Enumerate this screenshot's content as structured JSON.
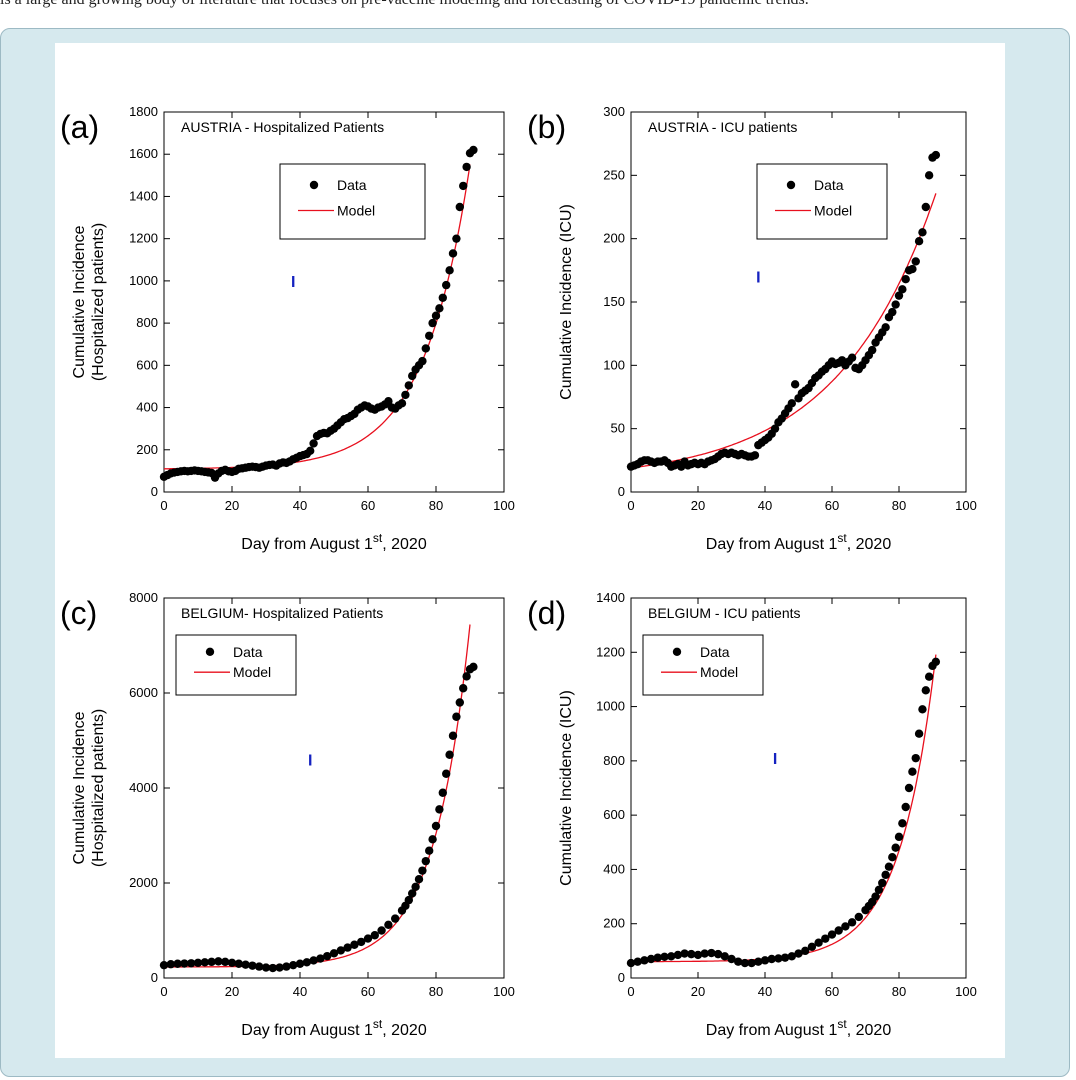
{
  "page": {
    "top_text": "is a large and growing body of literature that focuses on pre-vaccine modeling and forecasting of COVID-19 pandemic trends.",
    "colors": {
      "frame_bg": "#d6e9ee",
      "data_marker": "#000000",
      "model_line": "#e8101e",
      "marker_i": "#1522c0"
    }
  },
  "chart_data": [
    {
      "panel_label": "(a)",
      "type": "scatter",
      "title": "AUSTRIA - Hospitalized Patients",
      "xlabel_pre": "Day from August 1",
      "xlabel_sup": "st",
      "xlabel_post": ", 2020",
      "ylabel": [
        "Cumulative Incidence",
        "(Hospitalized patients)"
      ],
      "xlim": [
        0,
        100
      ],
      "ylim": [
        0,
        1800
      ],
      "xticks": [
        0,
        20,
        40,
        60,
        80,
        100
      ],
      "yticks": [
        0,
        200,
        400,
        600,
        800,
        1000,
        1200,
        1400,
        1600,
        1800
      ],
      "legend": {
        "position": "top-right",
        "entries": [
          "Data",
          "Model"
        ]
      },
      "marker_I": {
        "label": "I",
        "x": 38,
        "y": 1000
      },
      "model": {
        "base": 108,
        "amp": 1.9,
        "rate": 0.0737,
        "x_end": 90
      },
      "series": [
        {
          "name": "Data",
          "x": [
            0,
            1,
            2,
            3,
            4,
            5,
            6,
            7,
            8,
            9,
            10,
            11,
            12,
            13,
            14,
            15,
            16,
            17,
            18,
            19,
            20,
            21,
            22,
            23,
            24,
            25,
            26,
            27,
            28,
            29,
            30,
            31,
            32,
            33,
            34,
            35,
            36,
            37,
            38,
            39,
            40,
            41,
            42,
            43,
            44,
            45,
            46,
            47,
            48,
            49,
            50,
            51,
            52,
            53,
            54,
            55,
            56,
            57,
            58,
            59,
            60,
            61,
            62,
            63,
            64,
            65,
            66,
            67,
            68,
            69,
            70,
            71,
            72,
            73,
            74,
            75,
            76,
            77,
            78,
            79,
            80,
            81,
            82,
            83,
            84,
            85,
            86,
            87,
            88,
            89,
            90,
            91
          ],
          "y": [
            72,
            80,
            88,
            92,
            95,
            98,
            100,
            98,
            100,
            102,
            100,
            98,
            95,
            93,
            90,
            68,
            88,
            100,
            105,
            98,
            95,
            100,
            110,
            112,
            115,
            118,
            120,
            118,
            115,
            120,
            125,
            128,
            130,
            125,
            135,
            140,
            138,
            145,
            155,
            162,
            170,
            175,
            180,
            195,
            230,
            265,
            275,
            280,
            278,
            290,
            300,
            315,
            330,
            345,
            350,
            360,
            370,
            390,
            400,
            410,
            405,
            395,
            390,
            400,
            405,
            415,
            430,
            400,
            395,
            410,
            420,
            460,
            505,
            550,
            580,
            600,
            620,
            680,
            740,
            800,
            835,
            870,
            920,
            980,
            1050,
            1130,
            1200,
            1350,
            1450,
            1540,
            1605,
            1620
          ]
        }
      ]
    },
    {
      "panel_label": "(b)",
      "type": "scatter",
      "title": "AUSTRIA - ICU patients",
      "xlabel_pre": "Day from August 1",
      "xlabel_sup": "st",
      "xlabel_post": ", 2020",
      "ylabel": [
        "Cumulative  Incidence (ICU)"
      ],
      "xlim": [
        0,
        100
      ],
      "ylim": [
        0,
        300
      ],
      "xticks": [
        0,
        20,
        40,
        60,
        80,
        100
      ],
      "yticks": [
        0,
        50,
        100,
        150,
        200,
        250,
        300
      ],
      "legend": {
        "position": "top-right",
        "entries": [
          "Data",
          "Model"
        ]
      },
      "marker_I": {
        "label": "I",
        "x": 38,
        "y": 170
      },
      "model": {
        "base": 9,
        "amp": 10,
        "rate": 0.0343,
        "x_end": 91
      },
      "series": [
        {
          "name": "Data",
          "x": [
            0,
            1,
            2,
            3,
            4,
            5,
            6,
            7,
            8,
            9,
            10,
            11,
            12,
            13,
            14,
            15,
            16,
            17,
            18,
            19,
            20,
            21,
            22,
            23,
            24,
            25,
            26,
            27,
            28,
            29,
            30,
            31,
            32,
            33,
            34,
            35,
            36,
            37,
            38,
            39,
            40,
            41,
            42,
            43,
            44,
            45,
            46,
            47,
            48,
            49,
            50,
            51,
            52,
            53,
            54,
            55,
            56,
            57,
            58,
            59,
            60,
            61,
            62,
            63,
            64,
            65,
            66,
            67,
            68,
            69,
            70,
            71,
            72,
            73,
            74,
            75,
            76,
            77,
            78,
            79,
            80,
            81,
            82,
            83,
            84,
            85,
            86,
            87,
            88,
            89,
            90,
            91
          ],
          "y": [
            20,
            21,
            22,
            24,
            25,
            25,
            24,
            23,
            24,
            24,
            25,
            23,
            20,
            21,
            22,
            20,
            24,
            21,
            22,
            23,
            22,
            23,
            22,
            24,
            25,
            26,
            28,
            30,
            31,
            30,
            31,
            30,
            29,
            30,
            29,
            28,
            28,
            29,
            37,
            39,
            41,
            43,
            46,
            50,
            55,
            58,
            62,
            66,
            70,
            85,
            74,
            78,
            80,
            82,
            86,
            90,
            92,
            95,
            97,
            100,
            103,
            101,
            102,
            104,
            100,
            103,
            106,
            98,
            97,
            100,
            104,
            108,
            112,
            118,
            122,
            126,
            130,
            138,
            142,
            148,
            155,
            160,
            168,
            175,
            176,
            182,
            198,
            205,
            225,
            250,
            264,
            266
          ]
        }
      ]
    },
    {
      "panel_label": "(c)",
      "type": "scatter",
      "title": "BELGIUM- Hospitalized Patients",
      "xlabel_pre": "Day from August 1",
      "xlabel_sup": "st",
      "xlabel_post": ", 2020",
      "ylabel": [
        "Cumulative Incidence",
        "(Hospitalized patients)"
      ],
      "xlim": [
        0,
        100
      ],
      "ylim": [
        0,
        8000
      ],
      "xticks": [
        0,
        20,
        40,
        60,
        80,
        100
      ],
      "yticks": [
        0,
        2000,
        4000,
        6000,
        8000
      ],
      "legend": {
        "position": "top-left",
        "entries": [
          "Data",
          "Model"
        ]
      },
      "marker_I": {
        "label": "I",
        "x": 43,
        "y": 4600
      },
      "model": {
        "base": 230,
        "amp": 1.5,
        "rate": 0.0942,
        "x_end": 90
      },
      "series": [
        {
          "name": "Data",
          "x": [
            0,
            2,
            4,
            6,
            8,
            10,
            12,
            14,
            16,
            18,
            20,
            22,
            24,
            26,
            28,
            30,
            32,
            34,
            36,
            38,
            40,
            42,
            44,
            46,
            48,
            50,
            52,
            54,
            56,
            58,
            60,
            62,
            64,
            66,
            68,
            70,
            71,
            72,
            73,
            74,
            75,
            76,
            77,
            78,
            79,
            80,
            81,
            82,
            83,
            84,
            85,
            86,
            87,
            88,
            89,
            90,
            91
          ],
          "y": [
            270,
            290,
            300,
            305,
            310,
            320,
            330,
            340,
            350,
            340,
            320,
            300,
            280,
            260,
            240,
            220,
            210,
            220,
            240,
            270,
            300,
            330,
            370,
            410,
            460,
            520,
            580,
            640,
            700,
            760,
            830,
            900,
            1000,
            1120,
            1250,
            1420,
            1520,
            1640,
            1780,
            1920,
            2080,
            2260,
            2460,
            2680,
            2920,
            3200,
            3550,
            3900,
            4300,
            4700,
            5100,
            5500,
            5800,
            6100,
            6350,
            6500,
            6550
          ]
        }
      ]
    },
    {
      "panel_label": "(d)",
      "type": "scatter",
      "title": "BELGIUM - ICU patients",
      "xlabel_pre": "Day from August 1",
      "xlabel_sup": "st",
      "xlabel_post": ", 2020",
      "ylabel": [
        "Cumulative  Incidence (ICU)"
      ],
      "xlim": [
        0,
        100
      ],
      "ylim": [
        0,
        1400
      ],
      "xticks": [
        0,
        20,
        40,
        60,
        80,
        100
      ],
      "yticks": [
        0,
        200,
        400,
        600,
        800,
        1000,
        1200,
        1400
      ],
      "legend": {
        "position": "top-left",
        "entries": [
          "Data",
          "Model"
        ]
      },
      "marker_I": {
        "label": "I",
        "x": 43,
        "y": 810
      },
      "model": {
        "base": 60,
        "amp": 0.25,
        "rate": 0.0925,
        "x_end": 91
      },
      "series": [
        {
          "name": "Data",
          "x": [
            0,
            2,
            4,
            6,
            8,
            10,
            12,
            14,
            16,
            18,
            20,
            22,
            24,
            26,
            28,
            30,
            32,
            34,
            36,
            38,
            40,
            42,
            44,
            46,
            48,
            50,
            52,
            54,
            56,
            58,
            60,
            62,
            64,
            66,
            68,
            70,
            71,
            72,
            73,
            74,
            75,
            76,
            77,
            78,
            79,
            80,
            81,
            82,
            83,
            84,
            85,
            86,
            87,
            88,
            89,
            90,
            91
          ],
          "y": [
            55,
            60,
            65,
            70,
            75,
            78,
            80,
            85,
            90,
            88,
            85,
            90,
            92,
            88,
            80,
            70,
            60,
            55,
            55,
            60,
            65,
            70,
            72,
            75,
            80,
            90,
            100,
            115,
            130,
            145,
            160,
            175,
            190,
            205,
            225,
            250,
            265,
            280,
            300,
            325,
            350,
            380,
            410,
            445,
            480,
            520,
            570,
            630,
            700,
            760,
            810,
            900,
            990,
            1060,
            1110,
            1150,
            1165
          ]
        }
      ]
    }
  ]
}
